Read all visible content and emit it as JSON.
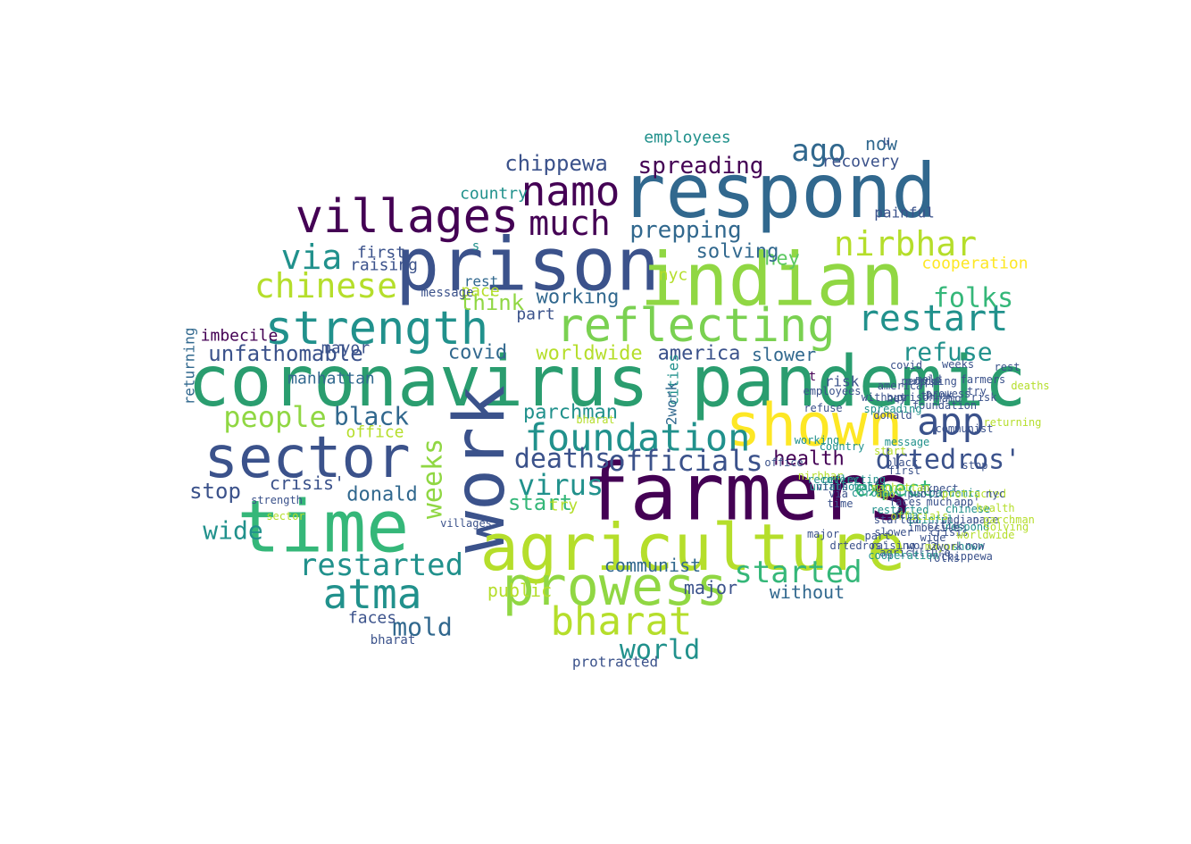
{
  "palette": {
    "dark_purple": "#440154",
    "indigo": "#3b528b",
    "blue": "#31688e",
    "teal": "#21918c",
    "green": "#35b779",
    "light_green": "#90d743",
    "lime": "#b5de2b",
    "yellow": "#fde725",
    "mid_green": "#5ec962"
  },
  "words": [
    {
      "text": "coronavirus pandemic",
      "size": 78,
      "color": "#2a9d6f",
      "rot": 0
    },
    {
      "text": "farmers",
      "size": 88,
      "color": "#440154",
      "rot": 0
    },
    {
      "text": "respond",
      "size": 84,
      "color": "#31688e",
      "rot": 0
    },
    {
      "text": "prison",
      "size": 82,
      "color": "#3b528b",
      "rot": 0
    },
    {
      "text": "indian",
      "size": 82,
      "color": "#90d743",
      "rot": 0
    },
    {
      "text": "time",
      "size": 80,
      "color": "#35b779",
      "rot": 0
    },
    {
      "text": "work",
      "size": 78,
      "color": "#3b528b",
      "rot": -90
    },
    {
      "text": "agriculture",
      "size": 72,
      "color": "#b5de2b",
      "rot": 0
    },
    {
      "text": "shown",
      "size": 66,
      "color": "#fde725",
      "rot": 0
    },
    {
      "text": "sector",
      "size": 64,
      "color": "#3b528b",
      "rot": 0
    },
    {
      "text": "prowess",
      "size": 60,
      "color": "#90d743",
      "rot": 0
    },
    {
      "text": "villages",
      "size": 52,
      "color": "#440154",
      "rot": 0
    },
    {
      "text": "reflecting",
      "size": 52,
      "color": "#7ad151",
      "rot": 0
    },
    {
      "text": "strength",
      "size": 52,
      "color": "#21918c",
      "rot": 0
    },
    {
      "text": "namo",
      "size": 46,
      "color": "#440154",
      "rot": 0
    },
    {
      "text": "atma",
      "size": 46,
      "color": "#21918c",
      "rot": 0
    },
    {
      "text": "bharat",
      "size": 44,
      "color": "#b5de2b",
      "rot": 0
    },
    {
      "text": "foundation",
      "size": 42,
      "color": "#21918c",
      "rot": 0
    },
    {
      "text": "app",
      "size": 42,
      "color": "#3b528b",
      "rot": 0
    },
    {
      "text": "restart",
      "size": 40,
      "color": "#21918c",
      "rot": 0
    },
    {
      "text": "chinese",
      "size": 38,
      "color": "#b5de2b",
      "rot": 0
    },
    {
      "text": "nirbhar",
      "size": 38,
      "color": "#b5de2b",
      "rot": 0
    },
    {
      "text": "much",
      "size": 38,
      "color": "#440154",
      "rot": 0
    },
    {
      "text": "via",
      "size": 38,
      "color": "#21918c",
      "rot": 0
    },
    {
      "text": "restarted",
      "size": 34,
      "color": "#21918c",
      "rot": 0
    },
    {
      "text": "started",
      "size": 34,
      "color": "#35b779",
      "rot": 0
    },
    {
      "text": "ago",
      "size": 34,
      "color": "#31688e",
      "rot": 0
    },
    {
      "text": "people",
      "size": 32,
      "color": "#90d743",
      "rot": 0
    },
    {
      "text": "officials",
      "size": 32,
      "color": "#3b528b",
      "rot": 0
    },
    {
      "text": "virus",
      "size": 32,
      "color": "#21918c",
      "rot": 0
    },
    {
      "text": "drtedros'",
      "size": 30,
      "color": "#3b528b",
      "rot": 0
    },
    {
      "text": "world",
      "size": 30,
      "color": "#21918c",
      "rot": 0
    },
    {
      "text": "folks",
      "size": 30,
      "color": "#35b779",
      "rot": 0
    },
    {
      "text": "weeks",
      "size": 30,
      "color": "#90d743",
      "rot": -90
    },
    {
      "text": "deaths",
      "size": 30,
      "color": "#3b528b",
      "rot": 0
    },
    {
      "text": "black",
      "size": 28,
      "color": "#31688e",
      "rot": 0
    },
    {
      "text": "mold",
      "size": 28,
      "color": "#31688e",
      "rot": 0
    },
    {
      "text": "wide",
      "size": 28,
      "color": "#21918c",
      "rot": 0
    },
    {
      "text": "refuse",
      "size": 28,
      "color": "#21918c",
      "rot": 0
    },
    {
      "text": "spreading",
      "size": 26,
      "color": "#440154",
      "rot": 0
    },
    {
      "text": "prepping",
      "size": 26,
      "color": "#31688e",
      "rot": 0
    },
    {
      "text": "chippewa",
      "size": 24,
      "color": "#3b528b",
      "rot": 0
    },
    {
      "text": "think",
      "size": 24,
      "color": "#90d743",
      "rot": 0
    },
    {
      "text": "start",
      "size": 24,
      "color": "#35b779",
      "rot": 0
    },
    {
      "text": "stop",
      "size": 24,
      "color": "#3b528b",
      "rot": 0
    },
    {
      "text": "unfathomable",
      "size": 24,
      "color": "#3b528b",
      "rot": 0
    },
    {
      "text": "expect",
      "size": 24,
      "color": "#35b779",
      "rot": 0
    },
    {
      "text": "health",
      "size": 22,
      "color": "#440154",
      "rot": 0
    },
    {
      "text": "covid",
      "size": 22,
      "color": "#31688e",
      "rot": 0
    },
    {
      "text": "worldwide",
      "size": 22,
      "color": "#b5de2b",
      "rot": 0
    },
    {
      "text": "america",
      "size": 22,
      "color": "#3b528b",
      "rot": 0
    },
    {
      "text": "parchman",
      "size": 22,
      "color": "#21918c",
      "rot": 0
    },
    {
      "text": "hey",
      "size": 22,
      "color": "#5ec962",
      "rot": 0
    },
    {
      "text": "solving",
      "size": 22,
      "color": "#31688e",
      "rot": 0
    },
    {
      "text": "working",
      "size": 22,
      "color": "#31688e",
      "rot": 0
    },
    {
      "text": "donald",
      "size": 22,
      "color": "#31688e",
      "rot": 0
    },
    {
      "text": "crisis'",
      "size": 20,
      "color": "#3b528b",
      "rot": 0
    },
    {
      "text": "public",
      "size": 20,
      "color": "#b5de2b",
      "rot": 0
    },
    {
      "text": "without",
      "size": 20,
      "color": "#31688e",
      "rot": 0
    },
    {
      "text": "communist",
      "size": 20,
      "color": "#31688e",
      "rot": 0
    },
    {
      "text": "major",
      "size": 20,
      "color": "#3b528b",
      "rot": 0
    },
    {
      "text": "slower",
      "size": 20,
      "color": "#31688e",
      "rot": 0
    },
    {
      "text": "faces",
      "size": 18,
      "color": "#3b528b",
      "rot": 0
    },
    {
      "text": "manhattan",
      "size": 18,
      "color": "#31688e",
      "rot": 0
    },
    {
      "text": "mayor",
      "size": 18,
      "color": "#3b528b",
      "rot": 0
    },
    {
      "text": "first",
      "size": 18,
      "color": "#3b528b",
      "rot": 0
    },
    {
      "text": "raising",
      "size": 18,
      "color": "#3b528b",
      "rot": 0
    },
    {
      "text": "part",
      "size": 18,
      "color": "#3b528b",
      "rot": 0
    },
    {
      "text": "imbecile",
      "size": 18,
      "color": "#440154",
      "rot": 0
    },
    {
      "text": "country",
      "size": 18,
      "color": "#21918c",
      "rot": 0
    },
    {
      "text": "employees",
      "size": 18,
      "color": "#21918c",
      "rot": 0
    },
    {
      "text": "cooperation",
      "size": 18,
      "color": "#fde725",
      "rot": 0
    },
    {
      "text": "recovery",
      "size": 18,
      "color": "#3b528b",
      "rot": 0
    },
    {
      "text": "now",
      "size": 20,
      "color": "#31688e",
      "rot": 0
    },
    {
      "text": "nyc",
      "size": 18,
      "color": "#b5de2b",
      "rot": 0
    },
    {
      "text": "pace",
      "size": 18,
      "color": "#b5de2b",
      "rot": 0
    },
    {
      "text": "try",
      "size": 18,
      "color": "#b5de2b",
      "rot": 0
    },
    {
      "text": "office",
      "size": 18,
      "color": "#b5de2b",
      "rot": 0
    },
    {
      "text": "returning",
      "size": 16,
      "color": "#31688e",
      "rot": -90
    },
    {
      "text": "protracted",
      "size": 16,
      "color": "#3b528b",
      "rot": 0
    },
    {
      "text": "painful",
      "size": 16,
      "color": "#3b528b",
      "rot": 0
    },
    {
      "text": "message",
      "size": 14,
      "color": "#3b528b",
      "rot": 0
    },
    {
      "text": "risk",
      "size": 16,
      "color": "#3b528b",
      "rot": 0
    },
    {
      "text": "cities",
      "size": 16,
      "color": "#21918c",
      "rot": -90
    },
    {
      "text": "rest",
      "size": 16,
      "color": "#31688e",
      "rot": 0
    },
    {
      "text": "2work",
      "size": 16,
      "color": "#31688e",
      "rot": -90
    },
    {
      "text": "bharat",
      "size": 14,
      "color": "#3b528b",
      "rot": 0
    },
    {
      "text": "u",
      "size": 14,
      "color": "#3b528b",
      "rot": 0
    },
    {
      "text": "t",
      "size": 14,
      "color": "#440154",
      "rot": 0
    },
    {
      "text": "s",
      "size": 14,
      "color": "#21918c",
      "rot": 0
    },
    {
      "text": "donald",
      "size": 12,
      "color": "#3b528b",
      "rot": 0
    },
    {
      "text": "shown",
      "size": 12,
      "color": "#21918c",
      "rot": 0
    },
    {
      "text": "prison",
      "size": 12,
      "color": "#3b528b",
      "rot": 0
    },
    {
      "text": "hey",
      "size": 12,
      "color": "#3b528b",
      "rot": 0
    },
    {
      "text": "atma",
      "size": 12,
      "color": "#21918c",
      "rot": 0
    },
    {
      "text": "deaths",
      "size": 12,
      "color": "#b5de2b",
      "rot": 0
    },
    {
      "text": "namo",
      "size": 12,
      "color": "#3b528b",
      "rot": 0
    },
    {
      "text": "covid",
      "size": 12,
      "color": "#3b528b",
      "rot": 0
    },
    {
      "text": "prowess",
      "size": 12,
      "color": "#3b528b",
      "rot": 0
    },
    {
      "text": "weeks",
      "size": 12,
      "color": "#3b528b",
      "rot": 0
    },
    {
      "text": "wide",
      "size": 12,
      "color": "#3b528b",
      "rot": 0
    },
    {
      "text": "strength",
      "size": 12,
      "color": "#3b528b",
      "rot": 0
    },
    {
      "text": "villages",
      "size": 12,
      "color": "#3b528b",
      "rot": 0
    },
    {
      "text": "imbecile",
      "size": 12,
      "color": "#3b528b",
      "rot": 0
    },
    {
      "text": "respond",
      "size": 12,
      "color": "#21918c",
      "rot": 0
    },
    {
      "text": "chippewa",
      "size": 12,
      "color": "#3b528b",
      "rot": 0
    },
    {
      "text": "sector",
      "size": 12,
      "color": "#b5de2b",
      "rot": 0
    },
    {
      "text": "employees",
      "size": 12,
      "color": "#3b528b",
      "rot": 0
    },
    {
      "text": "refuse",
      "size": 12,
      "color": "#3b528b",
      "rot": 0
    },
    {
      "text": "nirbhar",
      "size": 12,
      "color": "#b5de2b",
      "rot": 0
    },
    {
      "text": "foundation",
      "size": 12,
      "color": "#3b528b",
      "rot": 0
    },
    {
      "text": "reflecting",
      "size": 12,
      "color": "#21918c",
      "rot": 0
    },
    {
      "text": "recovery",
      "size": 12,
      "color": "#21918c",
      "rot": 0
    },
    {
      "text": "chinese",
      "size": 12,
      "color": "#21918c",
      "rot": 0
    },
    {
      "text": "spreading",
      "size": 12,
      "color": "#21918c",
      "rot": 0
    },
    {
      "text": "farmers",
      "size": 12,
      "color": "#3b528b",
      "rot": 0
    },
    {
      "text": "america",
      "size": 12,
      "color": "#3b528b",
      "rot": 0
    },
    {
      "text": "solving",
      "size": 12,
      "color": "#b5de2b",
      "rot": 0
    },
    {
      "text": "think",
      "size": 12,
      "color": "#3b528b",
      "rot": 0
    },
    {
      "text": "office",
      "size": 12,
      "color": "#3b528b",
      "rot": 0
    },
    {
      "text": "working",
      "size": 12,
      "color": "#21918c",
      "rot": 0
    },
    {
      "text": "message",
      "size": 12,
      "color": "#21918c",
      "rot": 0
    },
    {
      "text": "restarted",
      "size": 12,
      "color": "#21918c",
      "rot": 0
    },
    {
      "text": "coronavirus pandemic",
      "size": 12,
      "color": "#21918c",
      "rot": 0
    },
    {
      "text": "unfathomable",
      "size": 12,
      "color": "#21918c",
      "rot": 0
    },
    {
      "text": "virus",
      "size": 12,
      "color": "#3b528b",
      "rot": 0
    },
    {
      "text": "ago",
      "size": 12,
      "color": "#b5de2b",
      "rot": 0
    },
    {
      "text": "start",
      "size": 12,
      "color": "#b5de2b",
      "rot": 0
    },
    {
      "text": "major",
      "size": 12,
      "color": "#3b528b",
      "rot": 0
    },
    {
      "text": "faces",
      "size": 12,
      "color": "#3b528b",
      "rot": 0
    },
    {
      "text": "crisis",
      "size": 12,
      "color": "#3b528b",
      "rot": 0
    },
    {
      "text": "indian",
      "size": 12,
      "color": "#3b528b",
      "rot": 0
    },
    {
      "text": "much",
      "size": 12,
      "color": "#3b528b",
      "rot": 0
    },
    {
      "text": "app'",
      "size": 12,
      "color": "#3b528b",
      "rot": 0
    },
    {
      "text": "without",
      "size": 12,
      "color": "#3b528b",
      "rot": 0
    },
    {
      "text": "painful",
      "size": 12,
      "color": "#21918c",
      "rot": 0
    },
    {
      "text": "started",
      "size": 12,
      "color": "#3b528b",
      "rot": 0
    },
    {
      "text": "public",
      "size": 12,
      "color": "#3b528b",
      "rot": 0
    },
    {
      "text": "officials",
      "size": 12,
      "color": "#b5de2b",
      "rot": 0
    },
    {
      "text": "world",
      "size": 12,
      "color": "#3b528b",
      "rot": 0
    },
    {
      "text": "country",
      "size": 12,
      "color": "#21918c",
      "rot": 0
    },
    {
      "text": "time",
      "size": 12,
      "color": "#3b528b",
      "rot": 0
    },
    {
      "text": "pace",
      "size": 12,
      "color": "#3b528b",
      "rot": 0
    },
    {
      "text": "expect",
      "size": 12,
      "color": "#3b528b",
      "rot": 0
    },
    {
      "text": "health",
      "size": 12,
      "color": "#b5de2b",
      "rot": 0
    },
    {
      "text": "agriculture",
      "size": 12,
      "color": "#3b528b",
      "rot": 0
    },
    {
      "text": "manhattan",
      "size": 12,
      "color": "#b5de2b",
      "rot": 0
    },
    {
      "text": "raising",
      "size": 12,
      "color": "#3b528b",
      "rot": 0
    },
    {
      "text": "prepping",
      "size": 12,
      "color": "#3b528b",
      "rot": 0
    },
    {
      "text": "people",
      "size": 12,
      "color": "#3b528b",
      "rot": 0
    },
    {
      "text": "mayor",
      "size": 12,
      "color": "#b5de2b",
      "rot": 0
    },
    {
      "text": "folks",
      "size": 12,
      "color": "#3b528b",
      "rot": 0
    },
    {
      "text": "risk",
      "size": 12,
      "color": "#3b528b",
      "rot": 0
    },
    {
      "text": "try",
      "size": 12,
      "color": "#3b528b",
      "rot": 0
    },
    {
      "text": "mold",
      "size": 12,
      "color": "#3b528b",
      "rot": 0
    },
    {
      "text": "black",
      "size": 12,
      "color": "#3b528b",
      "rot": 0
    },
    {
      "text": "rest",
      "size": 12,
      "color": "#3b528b",
      "rot": 0
    },
    {
      "text": "cities",
      "size": 12,
      "color": "#3b528b",
      "rot": 0
    },
    {
      "text": "communist",
      "size": 12,
      "color": "#3b528b",
      "rot": 0
    },
    {
      "text": "slower",
      "size": 12,
      "color": "#3b528b",
      "rot": 0
    },
    {
      "text": "first",
      "size": 12,
      "color": "#3b528b",
      "rot": 0
    },
    {
      "text": "stop",
      "size": 12,
      "color": "#3b528b",
      "rot": 0
    },
    {
      "text": "returning",
      "size": 12,
      "color": "#b5de2b",
      "rot": 0
    },
    {
      "text": "drtedros'",
      "size": 12,
      "color": "#3b528b",
      "rot": 0
    },
    {
      "text": "cooperation",
      "size": 12,
      "color": "#21918c",
      "rot": 0
    },
    {
      "text": "via",
      "size": 12,
      "color": "#3b528b",
      "rot": 0
    },
    {
      "text": "protracted",
      "size": 12,
      "color": "#b5de2b",
      "rot": 0
    },
    {
      "text": "worldwide",
      "size": 12,
      "color": "#b5de2b",
      "rot": 0
    },
    {
      "text": "nyc",
      "size": 12,
      "color": "#3b528b",
      "rot": 0
    },
    {
      "text": "parchman",
      "size": 12,
      "color": "#b5de2b",
      "rot": 0
    },
    {
      "text": "part",
      "size": 12,
      "color": "#3b528b",
      "rot": 0
    },
    {
      "text": "2work",
      "size": 12,
      "color": "#3b528b",
      "rot": 0
    },
    {
      "text": "now",
      "size": 12,
      "color": "#3b528b",
      "rot": 0
    },
    {
      "text": "bharat",
      "size": 12,
      "color": "#b5de2b",
      "rot": 0
    }
  ]
}
